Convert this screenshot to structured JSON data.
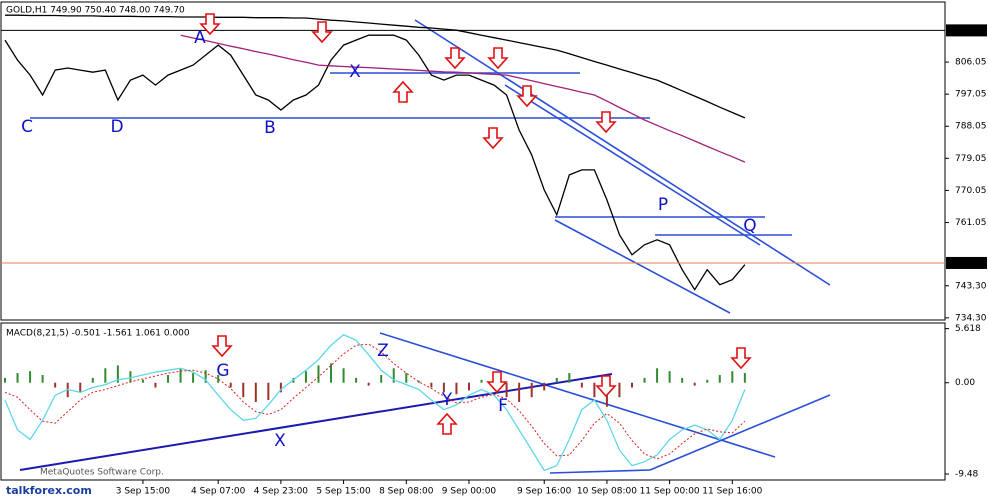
{
  "chart_data": [
    {
      "type": "line",
      "title": "GOLD,H1 749.90 750.40 748.00 749.70",
      "categories": [
        null,
        null,
        null,
        null,
        null,
        null,
        null,
        null,
        null,
        null,
        null,
        "3 Sep 15:00",
        null,
        null,
        null,
        null,
        null,
        "4 Sep 07:00",
        null,
        null,
        null,
        null,
        "4 Sep 23:00",
        null,
        null,
        null,
        null,
        "5 Sep 15:00",
        null,
        null,
        null,
        null,
        "8 Sep 08:00",
        null,
        null,
        null,
        null,
        "9 Sep 00:00",
        null,
        null,
        null,
        null,
        null,
        "9 Sep 16:00",
        null,
        null,
        null,
        null,
        "10 Sep 08:00",
        null,
        null,
        null,
        null,
        "11 Sep 00:00",
        null,
        null,
        null,
        null,
        "11 Sep 16:00",
        null
      ],
      "series": [
        {
          "color": "#000000",
          "values": [
            812.2,
            806.6,
            802.4,
            796.8,
            803.8,
            804.4,
            803.8,
            803.2,
            803.8,
            795.4,
            801.0,
            802.4,
            799.6,
            802.4,
            803.8,
            805.2,
            808.0,
            810.8,
            808.0,
            802.4,
            796.8,
            795.4,
            792.6,
            795.4,
            796.8,
            799.6,
            806.6,
            810.8,
            812.2,
            813.6,
            813.6,
            813.6,
            812.2,
            808.0,
            802.4,
            801.0,
            802.4,
            802.4,
            801.0,
            799.6,
            796.8,
            787.0,
            780.0,
            770.2,
            763.2,
            774.4,
            775.8,
            775.8,
            767.4,
            757.6,
            752.0,
            754.8,
            756.2,
            754.8,
            747.8,
            742.2,
            747.8,
            743.6,
            745.0,
            749.2
          ]
        },
        {
          "color": "#000000",
          "values": [
            819.2,
            819.2,
            819.1,
            819.1,
            819.1,
            819.0,
            819.0,
            819.0,
            818.9,
            818.9,
            818.9,
            818.8,
            818.8,
            818.8,
            818.7,
            818.7,
            818.7,
            818.6,
            818.6,
            818.6,
            818.5,
            818.5,
            818.5,
            818.4,
            818.4,
            818.1,
            817.8,
            817.6,
            817.3,
            817.0,
            816.7,
            816.4,
            816.1,
            815.8,
            815.6,
            815.3,
            815.0,
            814.3,
            813.6,
            812.9,
            812.2,
            811.5,
            810.8,
            810.1,
            809.4,
            808.4,
            807.3,
            806.2,
            805.2,
            804.1,
            803.1,
            802.0,
            801.0,
            799.5,
            798.0,
            796.5,
            795.0,
            793.4,
            791.9,
            790.4
          ]
        },
        {
          "color": "#a0207a",
          "values": [
            null,
            null,
            null,
            null,
            null,
            null,
            null,
            null,
            null,
            null,
            null,
            null,
            null,
            null,
            813.6,
            812.8,
            812.1,
            811.3,
            810.5,
            809.8,
            809.0,
            808.3,
            807.5,
            806.7,
            806.0,
            805.2,
            805.0,
            804.8,
            804.6,
            804.5,
            804.3,
            804.1,
            803.9,
            803.7,
            803.5,
            803.3,
            803.2,
            803.0,
            802.8,
            802.6,
            802.4,
            801.6,
            800.8,
            800.0,
            799.2,
            798.4,
            797.6,
            796.8,
            795.1,
            793.3,
            791.6,
            789.8,
            788.3,
            786.8,
            785.4,
            783.9,
            782.4,
            780.9,
            779.5,
            778.0
          ]
        }
      ],
      "ylim": [
        733.7,
        822.9
      ],
      "yticks": [
        {
          "value": 806.05,
          "label": "806.05"
        },
        {
          "value": 797.05,
          "label": "797.05"
        },
        {
          "value": 788.05,
          "label": "788.05"
        },
        {
          "value": 779.05,
          "label": "779.05"
        },
        {
          "value": 770.05,
          "label": "770.05"
        },
        {
          "value": 761.05,
          "label": "761.05"
        },
        {
          "value": 743.3,
          "label": "743.30"
        },
        {
          "value": 734.3,
          "label": "734.30"
        }
      ],
      "levels": [
        {
          "value": 814.94,
          "color": "#000000"
        },
        {
          "value": 749.7,
          "label": "749.70",
          "color": "#e0805a"
        }
      ],
      "annotations": [
        "A",
        "B",
        "C",
        "D",
        "X",
        "P",
        "Q"
      ]
    },
    {
      "type": "macd",
      "title": "MACD(8,21,5) -0.501 -1.561 1.061 0.000",
      "series": [
        {
          "color": "#5fd8e8",
          "values": [
            -1.8,
            -4.9,
            -5.9,
            -3.9,
            -1.3,
            -0.7,
            -1.0,
            -0.5,
            -0.2,
            0.3,
            0.5,
            0.8,
            1.1,
            1.3,
            1.5,
            1.1,
            0.3,
            -1.3,
            -2.8,
            -3.9,
            -3.7,
            -2.3,
            -0.7,
            0.3,
            1.3,
            2.4,
            3.9,
            5.0,
            4.4,
            2.9,
            1.3,
            0.3,
            -0.2,
            -0.7,
            -1.8,
            -2.8,
            -2.3,
            -1.3,
            -0.7,
            -1.3,
            -2.8,
            -4.9,
            -7.0,
            -9.1,
            -8.6,
            -5.9,
            -2.8,
            -1.8,
            -3.9,
            -7.0,
            -8.6,
            -8.2,
            -7.5,
            -5.9,
            -4.9,
            -4.4,
            -4.9,
            -5.9,
            -3.9,
            -0.7
          ]
        },
        {
          "color": "#e02020",
          "values": [
            -1.0,
            -1.5,
            -2.8,
            -4.0,
            -4.2,
            -3.0,
            -1.8,
            -1.0,
            -0.7,
            -0.3,
            0.1,
            0.4,
            0.7,
            1.0,
            1.2,
            1.3,
            1.0,
            0.4,
            -0.6,
            -2.0,
            -3.0,
            -3.3,
            -2.8,
            -1.6,
            -0.5,
            0.6,
            1.8,
            3.0,
            3.9,
            4.0,
            3.2,
            2.0,
            1.0,
            0.1,
            -0.6,
            -1.4,
            -2.1,
            -2.0,
            -1.5,
            -1.2,
            -1.7,
            -2.9,
            -4.5,
            -6.3,
            -7.6,
            -7.5,
            -6.0,
            -4.2,
            -3.2,
            -4.2,
            -6.0,
            -7.4,
            -7.9,
            -7.4,
            -6.3,
            -5.3,
            -4.8,
            -5.1,
            -5.2,
            -4.0
          ]
        }
      ],
      "histogram": {
        "colors": [
          "#2e8b2e",
          "#a0302a"
        ],
        "values": [
          0.5,
          1.0,
          1.2,
          0.8,
          -0.5,
          -1.5,
          -1.0,
          0.5,
          1.5,
          1.8,
          1.2,
          0.3,
          -0.5,
          0.8,
          1.5,
          1.0,
          1.3,
          0.8,
          -0.5,
          -1.5,
          -2.0,
          -1.8,
          -1.0,
          0.5,
          1.2,
          1.8,
          2.0,
          1.5,
          0.5,
          -0.3,
          0.8,
          1.5,
          1.0,
          0.2,
          -0.5,
          -1.0,
          -1.2,
          -0.8,
          0.3,
          -0.5,
          -1.5,
          -2.0,
          -1.5,
          -0.8,
          0.5,
          1.0,
          -0.5,
          -1.5,
          -2.5,
          -1.5,
          -0.5,
          0.5,
          1.5,
          1.2,
          0.5,
          -0.3,
          0.3,
          0.8,
          1.2,
          1.0
        ]
      },
      "ylim": [
        -10.1,
        6.2
      ],
      "yticks": [
        5.618,
        {
          "value": 0,
          "label": "0.00"
        },
        -9.48
      ],
      "annotations": [
        "G",
        "Z",
        "Y",
        "F",
        "X"
      ]
    }
  ],
  "watermark": "MetaQuotes Software Corp.",
  "site": "talkforex.com"
}
